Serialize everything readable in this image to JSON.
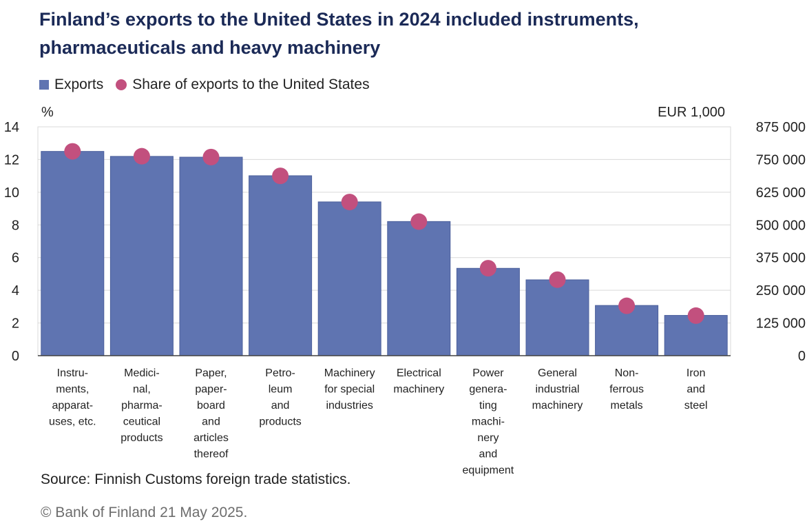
{
  "title": "Finland’s exports to the United States in 2024 included instruments, pharmaceuticals and heavy machinery",
  "legend": {
    "exports": "Exports",
    "share": "Share of exports to the United States"
  },
  "left_unit": "%",
  "right_unit": "EUR 1,000",
  "source": "Source: Finnish Customs foreign trade statistics.",
  "copyright": "© Bank of Finland 21 May 2025.",
  "colors": {
    "bar": "#5f74b1",
    "dot": "#c2507e",
    "grid": "#d9d9d9"
  },
  "chart_data": {
    "type": "bar",
    "categories": [
      [
        "Instru-",
        "ments,",
        "apparat-",
        "uses, etc."
      ],
      [
        "Medici-",
        "nal,",
        "pharma-",
        "ceutical",
        "products"
      ],
      [
        "Paper,",
        "paper-",
        "board",
        "and",
        "articles",
        "thereof"
      ],
      [
        "Petro-",
        "leum",
        "and",
        "products"
      ],
      [
        "Machinery",
        "for special",
        "industries"
      ],
      [
        "Electrical",
        "machinery"
      ],
      [
        "Power",
        "genera-",
        "ting",
        "machi-",
        "nery",
        "and",
        "equipment"
      ],
      [
        "General",
        "industrial",
        "machinery"
      ],
      [
        "Non-",
        "ferrous",
        "metals"
      ],
      [
        "Iron",
        "and",
        "steel"
      ]
    ],
    "series": [
      {
        "name": "Exports",
        "axis": "right",
        "kind": "bar",
        "values": [
          781000,
          762000,
          759000,
          688000,
          588000,
          513000,
          334000,
          290000,
          192000,
          154000
        ]
      },
      {
        "name": "Share of exports to the United States",
        "axis": "left",
        "kind": "dot",
        "values": [
          12.5,
          12.2,
          12.15,
          11.0,
          9.4,
          8.2,
          5.35,
          4.65,
          3.05,
          2.45
        ]
      }
    ],
    "y_left": {
      "min": 0,
      "max": 14,
      "ticks": [
        0,
        2,
        4,
        6,
        8,
        10,
        12,
        14
      ]
    },
    "y_right": {
      "min": 0,
      "max": 875000,
      "ticks": [
        0,
        125000,
        250000,
        375000,
        500000,
        625000,
        750000,
        875000
      ],
      "tick_labels": [
        "0",
        "125 000",
        "250 000",
        "375 000",
        "500 000",
        "625 000",
        "750 000",
        "875 000"
      ]
    },
    "grid": true,
    "legend_position": "top-left"
  }
}
